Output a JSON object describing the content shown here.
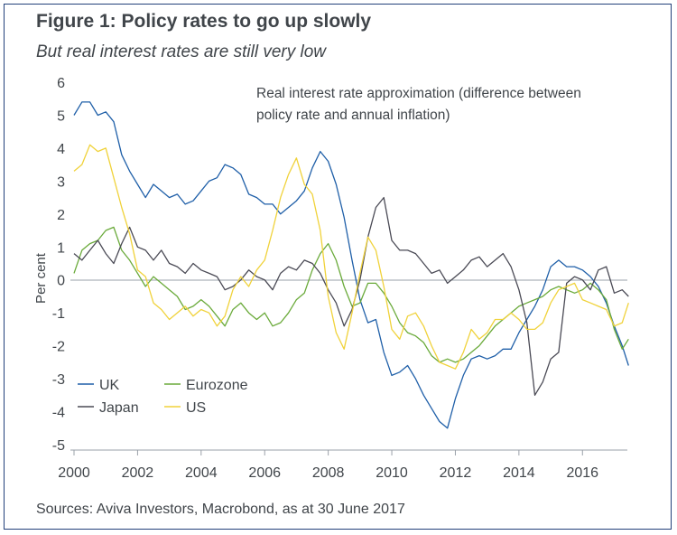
{
  "title": "Figure 1: Policy rates to go up slowly",
  "subtitle": "But real interest rates are still very low",
  "source": "Sources: Aviva Investors, Macrobond, as at 30 June 2017",
  "chart_data": {
    "type": "line",
    "title": "Figure 1: Policy rates to go up slowly",
    "subtitle": "But real interest rates are still very low",
    "annotation": [
      "Real interest rate approximation (difference between",
      "policy rate and annual inflation)"
    ],
    "ylabel": "Per cent",
    "xlabel": "",
    "xlim": [
      2000,
      2017.6
    ],
    "ylim": [
      -5,
      6
    ],
    "x_ticks": [
      "2000",
      "2002",
      "2004",
      "2006",
      "2008",
      "2010",
      "2012",
      "2014",
      "2016"
    ],
    "y_ticks": [
      "6",
      "5",
      "4",
      "3",
      "2",
      "1",
      "0",
      "-1",
      "-2",
      "-3",
      "-4",
      "-5"
    ],
    "legend_position": "bottom-left",
    "series": [
      {
        "name": "UK",
        "color": "#1f5fa8",
        "x": [
          2000.0,
          2000.25,
          2000.5,
          2000.75,
          2001.0,
          2001.25,
          2001.5,
          2001.75,
          2002.0,
          2002.25,
          2002.5,
          2002.75,
          2003.0,
          2003.25,
          2003.5,
          2003.75,
          2004.0,
          2004.25,
          2004.5,
          2004.75,
          2005.0,
          2005.25,
          2005.5,
          2005.75,
          2006.0,
          2006.25,
          2006.5,
          2006.75,
          2007.0,
          2007.25,
          2007.5,
          2007.75,
          2008.0,
          2008.25,
          2008.5,
          2008.75,
          2009.0,
          2009.25,
          2009.5,
          2009.75,
          2010.0,
          2010.25,
          2010.5,
          2010.75,
          2011.0,
          2011.25,
          2011.5,
          2011.75,
          2012.0,
          2012.25,
          2012.5,
          2012.75,
          2013.0,
          2013.25,
          2013.5,
          2013.75,
          2014.0,
          2014.25,
          2014.5,
          2014.75,
          2015.0,
          2015.25,
          2015.5,
          2015.75,
          2016.0,
          2016.25,
          2016.5,
          2016.75,
          2017.0,
          2017.25,
          2017.45
        ],
        "values": [
          5.0,
          5.4,
          5.4,
          5.0,
          5.1,
          4.8,
          3.8,
          3.3,
          2.9,
          2.5,
          2.9,
          2.7,
          2.5,
          2.6,
          2.3,
          2.4,
          2.7,
          3.0,
          3.1,
          3.5,
          3.4,
          3.2,
          2.6,
          2.5,
          2.3,
          2.3,
          2.0,
          2.2,
          2.4,
          2.7,
          3.4,
          3.9,
          3.6,
          2.9,
          1.9,
          0.6,
          -0.6,
          -1.3,
          -1.2,
          -2.2,
          -2.9,
          -2.8,
          -2.6,
          -3.0,
          -3.5,
          -3.9,
          -4.3,
          -4.5,
          -3.6,
          -2.9,
          -2.4,
          -2.3,
          -2.4,
          -2.3,
          -2.1,
          -2.1,
          -1.6,
          -1.2,
          -0.8,
          -0.3,
          0.4,
          0.6,
          0.4,
          0.4,
          0.3,
          0.1,
          -0.2,
          -0.7,
          -1.4,
          -2.0,
          -2.6
        ]
      },
      {
        "name": "Eurozone",
        "color": "#6aaa3a",
        "x": [
          2000.0,
          2000.25,
          2000.5,
          2000.75,
          2001.0,
          2001.25,
          2001.5,
          2001.75,
          2002.0,
          2002.25,
          2002.5,
          2002.75,
          2003.0,
          2003.25,
          2003.5,
          2003.75,
          2004.0,
          2004.25,
          2004.5,
          2004.75,
          2005.0,
          2005.25,
          2005.5,
          2005.75,
          2006.0,
          2006.25,
          2006.5,
          2006.75,
          2007.0,
          2007.25,
          2007.5,
          2007.75,
          2008.0,
          2008.25,
          2008.5,
          2008.75,
          2009.0,
          2009.25,
          2009.5,
          2009.75,
          2010.0,
          2010.25,
          2010.5,
          2010.75,
          2011.0,
          2011.25,
          2011.5,
          2011.75,
          2012.0,
          2012.25,
          2012.5,
          2012.75,
          2013.0,
          2013.25,
          2013.5,
          2013.75,
          2014.0,
          2014.25,
          2014.5,
          2014.75,
          2015.0,
          2015.25,
          2015.5,
          2015.75,
          2016.0,
          2016.25,
          2016.5,
          2016.75,
          2017.0,
          2017.25,
          2017.45
        ],
        "values": [
          0.2,
          0.9,
          1.1,
          1.2,
          1.5,
          1.6,
          0.9,
          0.6,
          0.2,
          -0.2,
          0.1,
          -0.1,
          -0.3,
          -0.5,
          -0.9,
          -0.8,
          -0.6,
          -0.8,
          -1.1,
          -1.4,
          -0.9,
          -0.7,
          -1.0,
          -1.2,
          -1.0,
          -1.4,
          -1.3,
          -1.0,
          -0.6,
          -0.4,
          0.3,
          0.8,
          1.1,
          0.6,
          -0.2,
          -0.8,
          -0.7,
          -0.1,
          -0.1,
          -0.4,
          -0.8,
          -1.3,
          -1.6,
          -1.7,
          -1.9,
          -2.3,
          -2.5,
          -2.4,
          -2.5,
          -2.4,
          -2.2,
          -2.0,
          -1.7,
          -1.4,
          -1.2,
          -1.0,
          -0.8,
          -0.7,
          -0.6,
          -0.5,
          -0.3,
          -0.2,
          -0.3,
          -0.4,
          -0.3,
          -0.1,
          -0.3,
          -0.6,
          -1.5,
          -2.1,
          -1.8
        ]
      },
      {
        "name": "Japan",
        "color": "#4a4a55",
        "x": [
          2000.0,
          2000.25,
          2000.5,
          2000.75,
          2001.0,
          2001.25,
          2001.5,
          2001.75,
          2002.0,
          2002.25,
          2002.5,
          2002.75,
          2003.0,
          2003.25,
          2003.5,
          2003.75,
          2004.0,
          2004.25,
          2004.5,
          2004.75,
          2005.0,
          2005.25,
          2005.5,
          2005.75,
          2006.0,
          2006.25,
          2006.5,
          2006.75,
          2007.0,
          2007.25,
          2007.5,
          2007.75,
          2008.0,
          2008.25,
          2008.5,
          2008.75,
          2009.0,
          2009.25,
          2009.5,
          2009.75,
          2010.0,
          2010.25,
          2010.5,
          2010.75,
          2011.0,
          2011.25,
          2011.5,
          2011.75,
          2012.0,
          2012.25,
          2012.5,
          2012.75,
          2013.0,
          2013.25,
          2013.5,
          2013.75,
          2014.0,
          2014.25,
          2014.5,
          2014.75,
          2015.0,
          2015.25,
          2015.5,
          2015.75,
          2016.0,
          2016.25,
          2016.5,
          2016.75,
          2017.0,
          2017.25,
          2017.45
        ],
        "values": [
          0.8,
          0.6,
          0.9,
          1.2,
          0.8,
          0.5,
          1.1,
          1.6,
          1.0,
          0.9,
          0.6,
          0.9,
          0.5,
          0.4,
          0.2,
          0.5,
          0.3,
          0.2,
          0.1,
          -0.3,
          -0.2,
          0.0,
          0.3,
          0.1,
          0.0,
          -0.3,
          0.2,
          0.4,
          0.3,
          0.6,
          0.5,
          0.2,
          -0.3,
          -0.7,
          -1.4,
          -0.9,
          0.0,
          1.3,
          2.2,
          2.5,
          1.2,
          0.9,
          0.9,
          0.8,
          0.5,
          0.2,
          0.3,
          -0.1,
          0.1,
          0.3,
          0.6,
          0.7,
          0.4,
          0.6,
          0.8,
          0.4,
          -0.3,
          -1.3,
          -3.5,
          -3.1,
          -2.4,
          -2.2,
          -0.1,
          0.1,
          0.0,
          -0.3,
          0.3,
          0.4,
          -0.4,
          -0.3,
          -0.5
        ]
      },
      {
        "name": "US",
        "color": "#f0d23a",
        "x": [
          2000.0,
          2000.25,
          2000.5,
          2000.75,
          2001.0,
          2001.25,
          2001.5,
          2001.75,
          2002.0,
          2002.25,
          2002.5,
          2002.75,
          2003.0,
          2003.25,
          2003.5,
          2003.75,
          2004.0,
          2004.25,
          2004.5,
          2004.75,
          2005.0,
          2005.25,
          2005.5,
          2005.75,
          2006.0,
          2006.25,
          2006.5,
          2006.75,
          2007.0,
          2007.25,
          2007.5,
          2007.75,
          2008.0,
          2008.25,
          2008.5,
          2008.75,
          2009.0,
          2009.25,
          2009.5,
          2009.75,
          2010.0,
          2010.25,
          2010.5,
          2010.75,
          2011.0,
          2011.25,
          2011.5,
          2011.75,
          2012.0,
          2012.25,
          2012.5,
          2012.75,
          2013.0,
          2013.25,
          2013.5,
          2013.75,
          2014.0,
          2014.25,
          2014.5,
          2014.75,
          2015.0,
          2015.25,
          2015.5,
          2015.75,
          2016.0,
          2016.25,
          2016.5,
          2016.75,
          2017.0,
          2017.25,
          2017.45
        ],
        "values": [
          3.3,
          3.5,
          4.1,
          3.9,
          4.0,
          3.1,
          2.2,
          1.4,
          0.3,
          0.1,
          -0.7,
          -0.9,
          -1.2,
          -1.0,
          -0.8,
          -1.1,
          -0.9,
          -1.0,
          -1.4,
          -1.1,
          -0.3,
          0.1,
          -0.2,
          0.3,
          0.6,
          1.5,
          2.5,
          3.2,
          3.7,
          2.9,
          2.6,
          1.5,
          -0.5,
          -1.6,
          -2.1,
          -1.0,
          0.2,
          1.3,
          0.9,
          -0.2,
          -1.5,
          -1.8,
          -1.1,
          -1.0,
          -1.4,
          -2.0,
          -2.5,
          -2.6,
          -2.7,
          -2.2,
          -1.5,
          -1.8,
          -1.6,
          -1.2,
          -1.2,
          -1.0,
          -1.2,
          -1.5,
          -1.5,
          -1.3,
          -0.7,
          -0.3,
          -0.2,
          -0.1,
          -0.6,
          -0.7,
          -0.8,
          -0.9,
          -1.4,
          -1.3,
          -0.7
        ]
      }
    ]
  }
}
